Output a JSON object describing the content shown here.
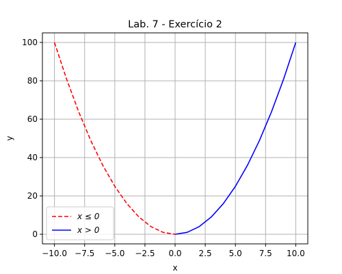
{
  "chart_data": {
    "type": "line",
    "title": "Lab. 7 - Exercício 2",
    "xlabel": "x",
    "ylabel": "y",
    "xlim": [
      -11.0,
      11.0
    ],
    "ylim": [
      -5,
      105
    ],
    "grid": true,
    "legend_position": "lower-left",
    "xticks": [
      -10.0,
      -7.5,
      -5.0,
      -2.5,
      0.0,
      2.5,
      5.0,
      7.5,
      10.0
    ],
    "xtick_labels": [
      "−10.0",
      "−7.5",
      "−5.0",
      "−2.5",
      "0.0",
      "2.5",
      "5.0",
      "7.5",
      "10.0"
    ],
    "yticks": [
      0,
      20,
      40,
      60,
      80,
      100
    ],
    "ytick_labels": [
      "0",
      "20",
      "40",
      "60",
      "80",
      "100"
    ],
    "series": [
      {
        "name": "x ≤ 0",
        "color": "#ff0000",
        "style": "dashed",
        "x": [
          -10,
          -9,
          -8,
          -7,
          -6,
          -5,
          -4,
          -3,
          -2,
          -1,
          0
        ],
        "y": [
          100,
          81,
          64,
          49,
          36,
          25,
          16,
          9,
          4,
          1,
          0
        ]
      },
      {
        "name": "x > 0",
        "color": "#0000ff",
        "style": "solid",
        "x": [
          0,
          1,
          2,
          3,
          4,
          5,
          6,
          7,
          8,
          9,
          10
        ],
        "y": [
          0,
          1,
          4,
          9,
          16,
          25,
          36,
          49,
          64,
          81,
          100
        ]
      }
    ]
  }
}
